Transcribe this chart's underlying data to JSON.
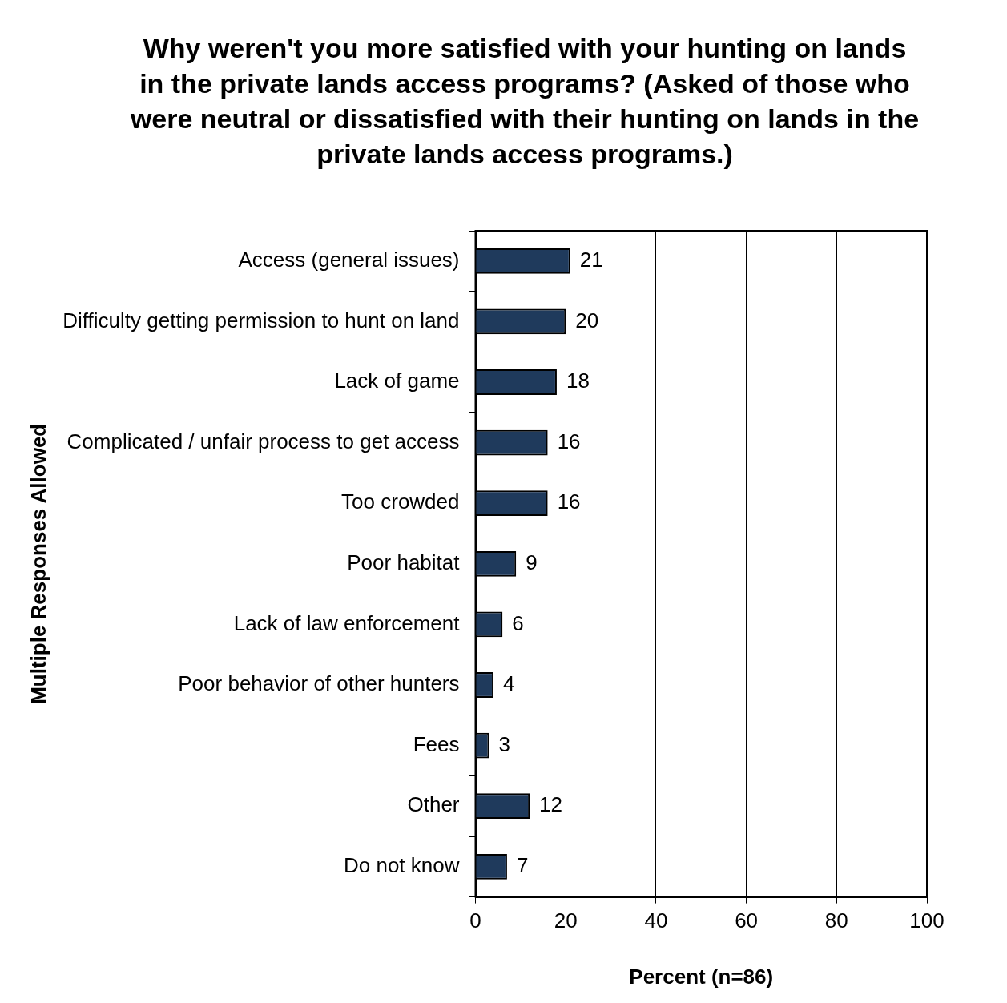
{
  "chart_data": {
    "type": "bar",
    "orientation": "horizontal",
    "title": "Why weren't you more satisfied with your hunting on lands in the private lands access programs? (Asked of those who were neutral or dissatisfied with their hunting on lands in the private lands access programs.)",
    "xlabel": "Percent (n=86)",
    "ylabel": "Multiple Responses Allowed",
    "categories": [
      "Access (general issues)",
      "Difficulty getting permission to hunt on land",
      "Lack of game",
      "Complicated / unfair process to get access",
      "Too crowded",
      "Poor habitat",
      "Lack of law enforcement",
      "Poor behavior of other hunters",
      "Fees",
      "Other",
      "Do not know"
    ],
    "values": [
      21,
      20,
      18,
      16,
      16,
      9,
      6,
      4,
      3,
      12,
      7
    ],
    "color": "#1f3a5c",
    "xlim": [
      0,
      100
    ],
    "xticks": [
      0,
      20,
      40,
      60,
      80,
      100
    ],
    "grid": "x",
    "legend": false,
    "data_labels": true
  }
}
